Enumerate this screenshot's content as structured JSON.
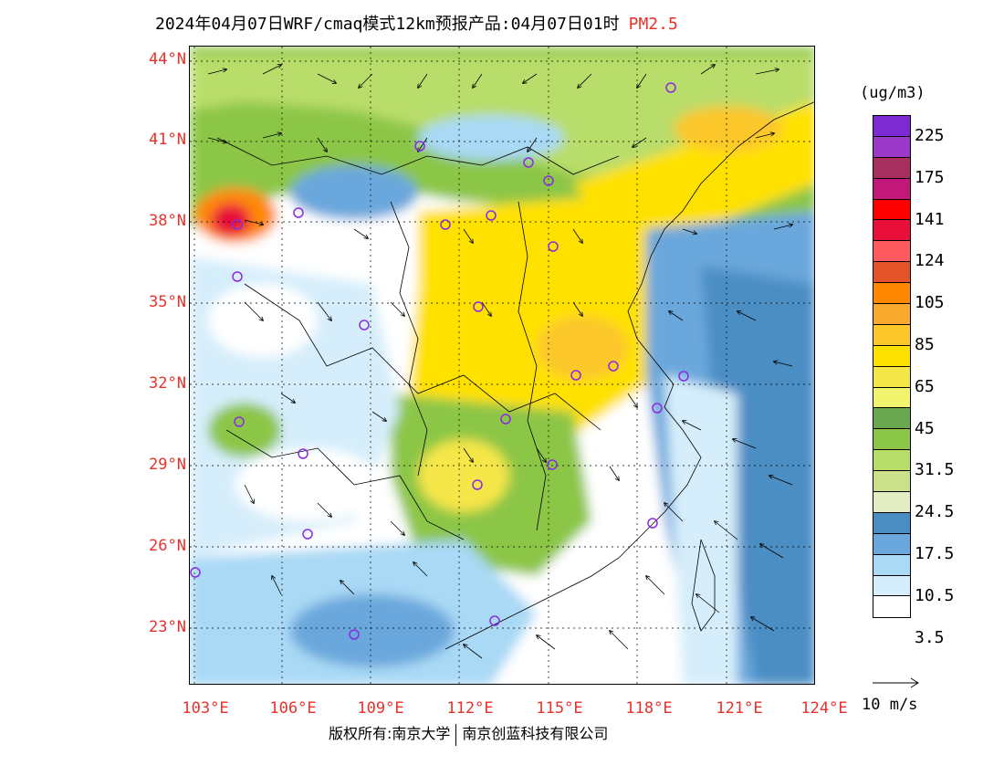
{
  "title": {
    "main": "2024年04月07日WRF/cmaq模式12km预报产品:04月07日01时",
    "pollutant": "PM2.5"
  },
  "axes": {
    "lat_labels": [
      "44°N",
      "41°N",
      "38°N",
      "35°N",
      "32°N",
      "29°N",
      "26°N",
      "23°N"
    ],
    "lon_labels": [
      "103°E",
      "106°E",
      "109°E",
      "112°E",
      "115°E",
      "118°E",
      "121°E",
      "124°E"
    ]
  },
  "legend": {
    "units": "(ug/m3)",
    "labels": [
      "225",
      "175",
      "141",
      "124",
      "105",
      "85",
      "65",
      "45",
      "31.5",
      "24.5",
      "17.5",
      "10.5",
      "3.5"
    ],
    "colors": [
      "#7b2bd1",
      "#9a38c8",
      "#a8305f",
      "#c2187a",
      "#ff0000",
      "#e8103a",
      "#ff5a5f",
      "#e5532a",
      "#ff8800",
      "#f9a92e",
      "#fcc72a",
      "#ffe100",
      "#f5e64a",
      "#f2f46e",
      "#6aa84f",
      "#8cc646",
      "#b9dd6a",
      "#cce08c",
      "#e3ecc2",
      "#4b8ec4",
      "#6aa7dc",
      "#a9d9f5",
      "#d6eefb",
      "#ffffff"
    ],
    "vector_label": "10 m/s"
  },
  "footer": {
    "copyright_left": "版权所有:南京大学",
    "copyright_right": "南京创蓝科技有限公司"
  }
}
